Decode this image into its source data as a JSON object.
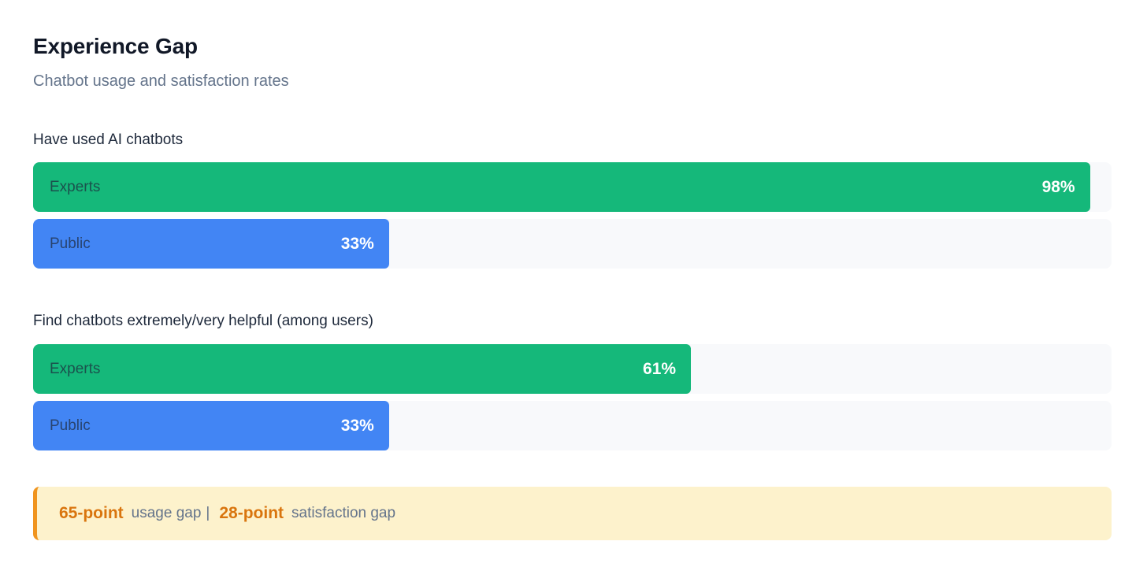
{
  "header": {
    "title": "Experience Gap",
    "subtitle": "Chatbot usage and satisfaction rates"
  },
  "colors": {
    "experts": "#15b87a",
    "public": "#4285f4",
    "track": "#f8f9fb",
    "callout_background": "#fdf2cc",
    "callout_border": "#f0941e",
    "callout_accent_text": "#d9750e",
    "title_text": "#111827",
    "muted_text": "#64748b"
  },
  "sections": [
    {
      "heading": "Have used AI chatbots",
      "bars": [
        {
          "label": "Experts",
          "value": "98%",
          "percent": 98
        },
        {
          "label": "Public",
          "value": "33%",
          "percent": 33
        }
      ]
    },
    {
      "heading": "Find chatbots extremely/very helpful (among users)",
      "bars": [
        {
          "label": "Experts",
          "value": "61%",
          "percent": 61
        },
        {
          "label": "Public",
          "value": "33%",
          "percent": 33
        }
      ]
    }
  ],
  "callout": {
    "gap1_value": "65-point",
    "gap1_label": "usage gap",
    "separator": "|",
    "gap2_value": "28-point",
    "gap2_label": "satisfaction gap"
  },
  "chart_data": {
    "type": "bar",
    "orientation": "horizontal",
    "title": "Experience Gap",
    "subtitle": "Chatbot usage and satisfaction rates",
    "categories": [
      "Have used AI chatbots",
      "Find chatbots extremely/very helpful (among users)"
    ],
    "series": [
      {
        "name": "Experts",
        "values": [
          98,
          61
        ],
        "color": "#15b87a"
      },
      {
        "name": "Public",
        "values": [
          33,
          33
        ],
        "color": "#4285f4"
      }
    ],
    "value_format": "percent",
    "xlim": [
      0,
      100
    ],
    "grid": false,
    "legend_position": "none",
    "data_labels": [
      "98%",
      "33%",
      "61%",
      "33%"
    ],
    "annotations": [
      "65-point usage gap",
      "28-point satisfaction gap"
    ]
  }
}
